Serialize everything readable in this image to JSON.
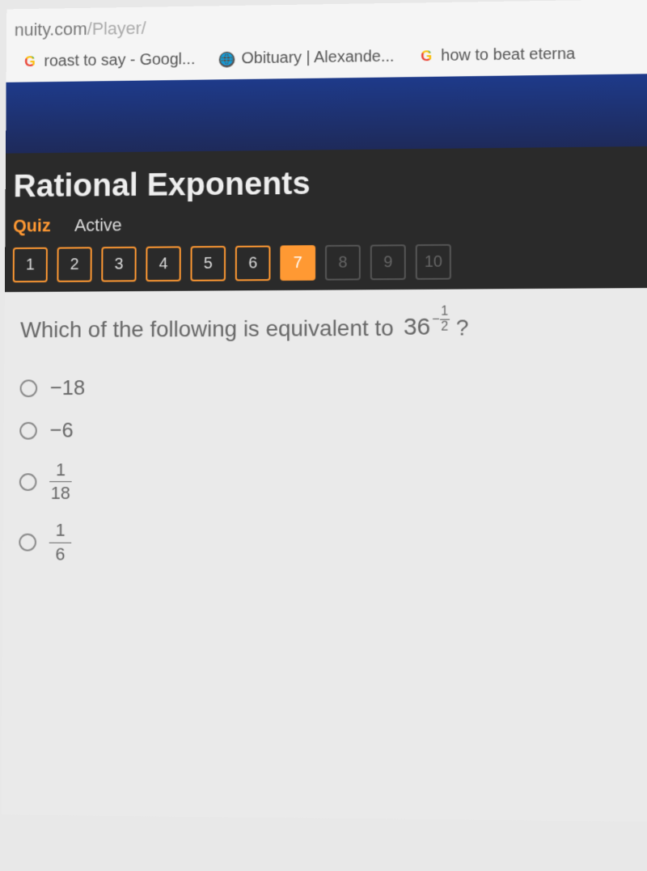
{
  "browser": {
    "url_domain": "nuity.com",
    "url_path": "/Player/",
    "bookmarks": [
      {
        "icon": "google",
        "label": "roast to say - Googl..."
      },
      {
        "icon": "globe",
        "label": "Obituary | Alexande..."
      },
      {
        "icon": "google",
        "label": "how to beat eterna"
      }
    ]
  },
  "quiz": {
    "title": "Rational Exponents",
    "tabs": [
      {
        "label": "Quiz",
        "active": true
      },
      {
        "label": "Active",
        "active": false
      }
    ],
    "nav": [
      {
        "n": "1",
        "state": "done"
      },
      {
        "n": "2",
        "state": "done"
      },
      {
        "n": "3",
        "state": "done"
      },
      {
        "n": "4",
        "state": "done"
      },
      {
        "n": "5",
        "state": "done"
      },
      {
        "n": "6",
        "state": "done"
      },
      {
        "n": "7",
        "state": "current"
      },
      {
        "n": "8",
        "state": "locked"
      },
      {
        "n": "9",
        "state": "locked"
      },
      {
        "n": "10",
        "state": "locked"
      }
    ]
  },
  "question": {
    "prompt": "Which of the following is equivalent to",
    "base": "36",
    "exp_sign": "−",
    "exp_num": "1",
    "exp_den": "2",
    "qmark": "?",
    "options": [
      {
        "type": "text",
        "value": "−18"
      },
      {
        "type": "text",
        "value": "−6"
      },
      {
        "type": "fraction",
        "num": "1",
        "den": "18"
      },
      {
        "type": "fraction",
        "num": "1",
        "den": "6"
      }
    ]
  },
  "colors": {
    "accent": "#ff9933",
    "header_bg": "#2a2a2a",
    "banner_bg": "#1e2a6c",
    "content_bg": "#eaeaea",
    "text": "#666666"
  }
}
